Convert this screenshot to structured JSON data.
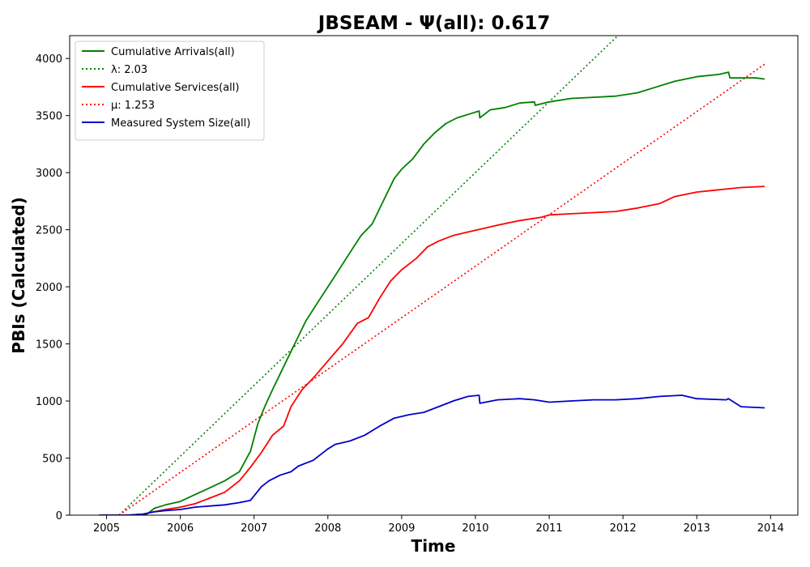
{
  "chart_data": {
    "type": "line",
    "title": "JBSEAM -  Ψ(all): 0.617",
    "xlabel": "Time",
    "ylabel": "PBIs (Calculated)",
    "xlim": [
      2004.5,
      2014.37
    ],
    "ylim": [
      0,
      4200
    ],
    "x_ticks": [
      "2005",
      "2006",
      "2007",
      "2008",
      "2009",
      "2010",
      "2011",
      "2012",
      "2013",
      "2014"
    ],
    "y_ticks": [
      "0",
      "500",
      "1000",
      "1500",
      "2000",
      "2500",
      "3000",
      "3500",
      "4000"
    ],
    "grid": false,
    "legend_position": "top-left",
    "series": [
      {
        "name": "Cumulative Arrivals(all)",
        "color": "#008000",
        "style": "solid",
        "x": [
          2004.9,
          2005.25,
          2005.4,
          2005.55,
          2005.65,
          2005.8,
          2006.0,
          2006.2,
          2006.4,
          2006.6,
          2006.8,
          2006.95,
          2007.05,
          2007.15,
          2007.25,
          2007.4,
          2007.55,
          2007.7,
          2007.85,
          2008.0,
          2008.15,
          2008.3,
          2008.45,
          2008.6,
          2008.75,
          2008.9,
          2009.0,
          2009.15,
          2009.3,
          2009.45,
          2009.6,
          2009.75,
          2009.9,
          2010.05,
          2010.06,
          2010.2,
          2010.4,
          2010.6,
          2010.8,
          2010.81,
          2011.0,
          2011.3,
          2011.6,
          2011.9,
          2012.2,
          2012.4,
          2012.7,
          2013.0,
          2013.3,
          2013.43,
          2013.45,
          2013.6,
          2013.8,
          2013.92
        ],
        "values": [
          0,
          0,
          5,
          10,
          60,
          90,
          120,
          180,
          240,
          300,
          380,
          560,
          800,
          960,
          1100,
          1300,
          1500,
          1700,
          1850,
          2000,
          2150,
          2300,
          2450,
          2550,
          2750,
          2950,
          3030,
          3120,
          3250,
          3350,
          3430,
          3480,
          3510,
          3540,
          3480,
          3550,
          3570,
          3610,
          3620,
          3590,
          3620,
          3650,
          3660,
          3670,
          3700,
          3740,
          3800,
          3840,
          3860,
          3880,
          3830,
          3830,
          3830,
          3820
        ]
      },
      {
        "name": "λ: 2.03",
        "color": "#008000",
        "style": "dotted",
        "x": [
          2005.17,
          2011.93
        ],
        "values": [
          0,
          4200
        ]
      },
      {
        "name": "Cumulative Services(all)",
        "color": "#ff0000",
        "style": "solid",
        "x": [
          2004.9,
          2005.3,
          2005.5,
          2005.65,
          2005.8,
          2006.0,
          2006.2,
          2006.4,
          2006.6,
          2006.8,
          2006.95,
          2007.1,
          2007.25,
          2007.4,
          2007.5,
          2007.65,
          2007.8,
          2008.0,
          2008.2,
          2008.4,
          2008.55,
          2008.7,
          2008.85,
          2009.0,
          2009.2,
          2009.35,
          2009.5,
          2009.7,
          2009.9,
          2010.1,
          2010.3,
          2010.6,
          2010.9,
          2011.0,
          2011.3,
          2011.6,
          2011.9,
          2012.2,
          2012.5,
          2012.7,
          2013.0,
          2013.3,
          2013.6,
          2013.92
        ],
        "values": [
          0,
          0,
          10,
          30,
          50,
          70,
          100,
          150,
          200,
          300,
          420,
          550,
          700,
          780,
          950,
          1100,
          1200,
          1350,
          1500,
          1680,
          1730,
          1900,
          2050,
          2150,
          2250,
          2350,
          2400,
          2450,
          2480,
          2510,
          2540,
          2580,
          2610,
          2630,
          2640,
          2650,
          2660,
          2690,
          2730,
          2790,
          2830,
          2850,
          2870,
          2880
        ]
      },
      {
        "name": "μ: 1.253",
        "color": "#ff0000",
        "style": "dotted",
        "x": [
          2005.17,
          2013.92
        ],
        "values": [
          0,
          3950
        ]
      },
      {
        "name": "Measured System Size(all)",
        "color": "#0000cc",
        "style": "solid",
        "x": [
          2004.9,
          2005.3,
          2005.5,
          2005.65,
          2005.8,
          2006.0,
          2006.2,
          2006.4,
          2006.6,
          2006.8,
          2006.95,
          2007.1,
          2007.2,
          2007.35,
          2007.5,
          2007.6,
          2007.8,
          2008.0,
          2008.1,
          2008.3,
          2008.5,
          2008.7,
          2008.9,
          2009.1,
          2009.3,
          2009.5,
          2009.7,
          2009.9,
          2010.05,
          2010.06,
          2010.3,
          2010.6,
          2010.8,
          2011.0,
          2011.3,
          2011.6,
          2011.9,
          2012.2,
          2012.5,
          2012.8,
          2013.0,
          2013.4,
          2013.43,
          2013.6,
          2013.92
        ],
        "values": [
          0,
          0,
          10,
          30,
          40,
          50,
          70,
          80,
          90,
          110,
          130,
          250,
          300,
          350,
          380,
          430,
          480,
          580,
          620,
          650,
          700,
          780,
          850,
          880,
          900,
          950,
          1000,
          1040,
          1050,
          980,
          1010,
          1020,
          1010,
          990,
          1000,
          1010,
          1010,
          1020,
          1040,
          1050,
          1020,
          1010,
          1020,
          950,
          940
        ]
      }
    ]
  }
}
